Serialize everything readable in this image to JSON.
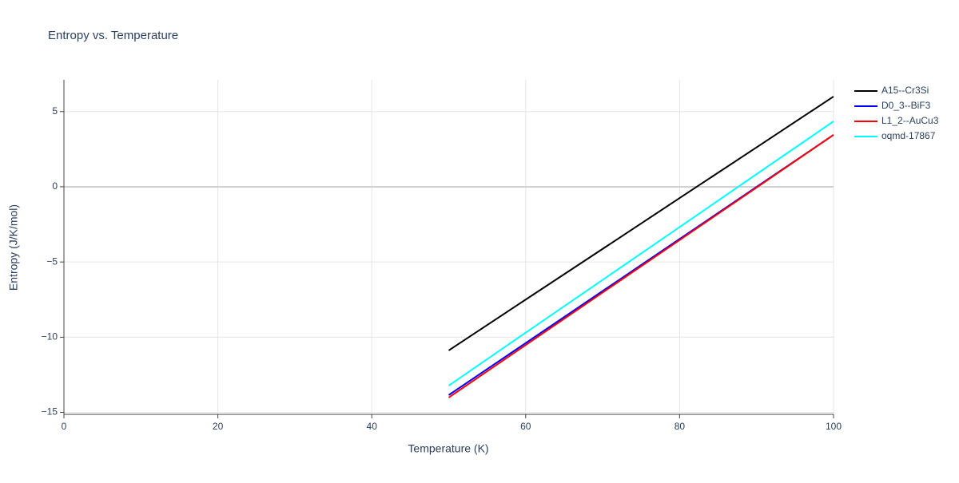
{
  "chart_data": {
    "type": "line",
    "title": "Entropy vs. Temperature",
    "x_label": "Temperature (K)",
    "y_label": "Entropy (J/K/mol)",
    "x": [
      50,
      60,
      70,
      80,
      90,
      100
    ],
    "series": [
      {
        "name": "A15--Cr3Si",
        "color": "#000000",
        "values": [
          -10.88,
          -7.5,
          -4.13,
          -0.75,
          2.62,
          6.0
        ]
      },
      {
        "name": "D0_3--BiF3",
        "color": "#0000ff",
        "values": [
          -13.85,
          -10.39,
          -6.93,
          -3.47,
          -0.01,
          3.45
        ]
      },
      {
        "name": "L1_2--AuCu3",
        "color": "#ff0000",
        "values": [
          -14.01,
          -10.52,
          -7.03,
          -3.54,
          -0.05,
          3.45
        ]
      },
      {
        "name": "oqmd-17867",
        "color": "#00ffff",
        "values": [
          -13.22,
          -9.7,
          -6.19,
          -2.68,
          0.84,
          4.35
        ]
      }
    ],
    "xlim": [
      0,
      100
    ],
    "xticks": [
      0,
      20,
      40,
      60,
      80,
      100
    ],
    "ylim": [
      -15.13,
      7.11
    ],
    "yticks": [
      {
        "value": -15,
        "label": "−15"
      },
      {
        "value": -10,
        "label": "−10"
      },
      {
        "value": -5,
        "label": "−5"
      },
      0,
      5
    ],
    "grid": true,
    "legend": "top-right"
  }
}
